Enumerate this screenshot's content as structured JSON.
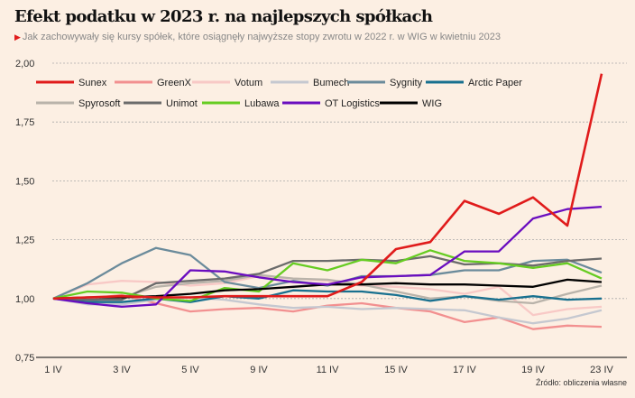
{
  "header": {
    "title": "Efekt podatku w 2023 r. na najlepszych spółkach",
    "subtitle": "Jak zachowywały się kursy spółek, które osiągnęły najwyższe stopy zwrotu w 2022 r. w WIG w kwietniu 2023",
    "subtitle_marker_icon": "triangle-right-icon"
  },
  "source": "Źródło: obliczenia własne",
  "chart_data": {
    "type": "line",
    "title": "Efekt podatku w 2023 r. na najlepszych spółkach",
    "xlabel": "",
    "ylabel": "",
    "ylim": [
      0.75,
      2.0
    ],
    "yticks": [
      "0,75",
      "1,00",
      "1,25",
      "1,50",
      "1,75",
      "2,00"
    ],
    "ytick_values": [
      0.75,
      1.0,
      1.25,
      1.5,
      1.75,
      2.0
    ],
    "x_count": 17,
    "xticks": [
      {
        "index": 0,
        "label": "1 IV"
      },
      {
        "index": 2,
        "label": "3 IV"
      },
      {
        "index": 4,
        "label": "5 IV"
      },
      {
        "index": 6,
        "label": "9 IV"
      },
      {
        "index": 8,
        "label": "11 IV"
      },
      {
        "index": 10,
        "label": "15 IV"
      },
      {
        "index": 12,
        "label": "17 IV"
      },
      {
        "index": 14,
        "label": "19 IV"
      },
      {
        "index": 16,
        "label": "23 IV"
      }
    ],
    "grid": true,
    "legend_placement": "top-left",
    "series": [
      {
        "name": "Sunex",
        "color": "#e01b1b",
        "values": [
          1.0,
          1.005,
          1.01,
          1.005,
          1.005,
          1.01,
          1.01,
          1.01,
          1.01,
          1.07,
          1.21,
          1.24,
          1.415,
          1.36,
          1.43,
          1.31,
          1.955
        ]
      },
      {
        "name": "GreenX",
        "color": "#f29090",
        "values": [
          1.0,
          1.0,
          1.015,
          0.98,
          0.945,
          0.955,
          0.96,
          0.945,
          0.97,
          0.98,
          0.96,
          0.945,
          0.9,
          0.92,
          0.87,
          0.885,
          0.88
        ]
      },
      {
        "name": "Votum",
        "color": "#f8c9c6",
        "values": [
          1.0,
          1.06,
          1.075,
          1.07,
          1.055,
          1.065,
          1.095,
          1.085,
          1.075,
          1.055,
          1.05,
          1.04,
          1.02,
          1.05,
          0.93,
          0.955,
          0.965
        ]
      },
      {
        "name": "Bumech",
        "color": "#c5c8d0",
        "values": [
          1.0,
          0.975,
          0.975,
          0.995,
          1.005,
          0.995,
          0.975,
          0.96,
          0.965,
          0.955,
          0.96,
          0.955,
          0.95,
          0.92,
          0.895,
          0.915,
          0.95
        ]
      },
      {
        "name": "Sygnity",
        "color": "#6b8b9b",
        "values": [
          1.0,
          1.065,
          1.15,
          1.215,
          1.185,
          1.07,
          1.045,
          1.075,
          1.055,
          1.095,
          1.095,
          1.1,
          1.12,
          1.12,
          1.16,
          1.165,
          1.11
        ]
      },
      {
        "name": "Arctic Paper",
        "color": "#18708f",
        "values": [
          1.0,
          0.985,
          0.985,
          1.0,
          0.985,
          1.01,
          1.0,
          1.035,
          1.03,
          1.03,
          1.015,
          0.99,
          1.01,
          0.995,
          1.01,
          0.995,
          1.0
        ]
      },
      {
        "name": "Spyrosoft",
        "color": "#b9b3aa",
        "values": [
          1.0,
          0.99,
          1.005,
          1.05,
          1.065,
          1.075,
          1.1,
          1.085,
          1.08,
          1.06,
          1.03,
          1.0,
          1.01,
          0.99,
          0.98,
          1.02,
          1.055
        ]
      },
      {
        "name": "Unimot",
        "color": "#6b6b6b",
        "values": [
          1.0,
          0.995,
          0.995,
          1.065,
          1.075,
          1.085,
          1.105,
          1.16,
          1.16,
          1.165,
          1.16,
          1.18,
          1.145,
          1.15,
          1.14,
          1.16,
          1.17
        ]
      },
      {
        "name": "Lubawa",
        "color": "#66cc22",
        "values": [
          1.0,
          1.03,
          1.025,
          1.0,
          0.99,
          1.045,
          1.03,
          1.15,
          1.12,
          1.165,
          1.15,
          1.205,
          1.16,
          1.15,
          1.13,
          1.15,
          1.085
        ]
      },
      {
        "name": "OT Logistics",
        "color": "#6a0dbf",
        "values": [
          1.0,
          0.98,
          0.965,
          0.975,
          1.12,
          1.115,
          1.09,
          1.07,
          1.06,
          1.09,
          1.095,
          1.1,
          1.2,
          1.2,
          1.34,
          1.38,
          1.39
        ]
      },
      {
        "name": "WIG",
        "color": "#000000",
        "values": [
          1.0,
          1.005,
          1.005,
          1.01,
          1.02,
          1.035,
          1.04,
          1.05,
          1.06,
          1.06,
          1.065,
          1.06,
          1.06,
          1.055,
          1.05,
          1.08,
          1.07
        ]
      }
    ],
    "draw_order": [
      "GreenX",
      "Votum",
      "Bumech",
      "Spyrosoft",
      "Arctic Paper",
      "Sygnity",
      "Unimot",
      "Lubawa",
      "WIG",
      "OT Logistics",
      "Sunex"
    ]
  }
}
